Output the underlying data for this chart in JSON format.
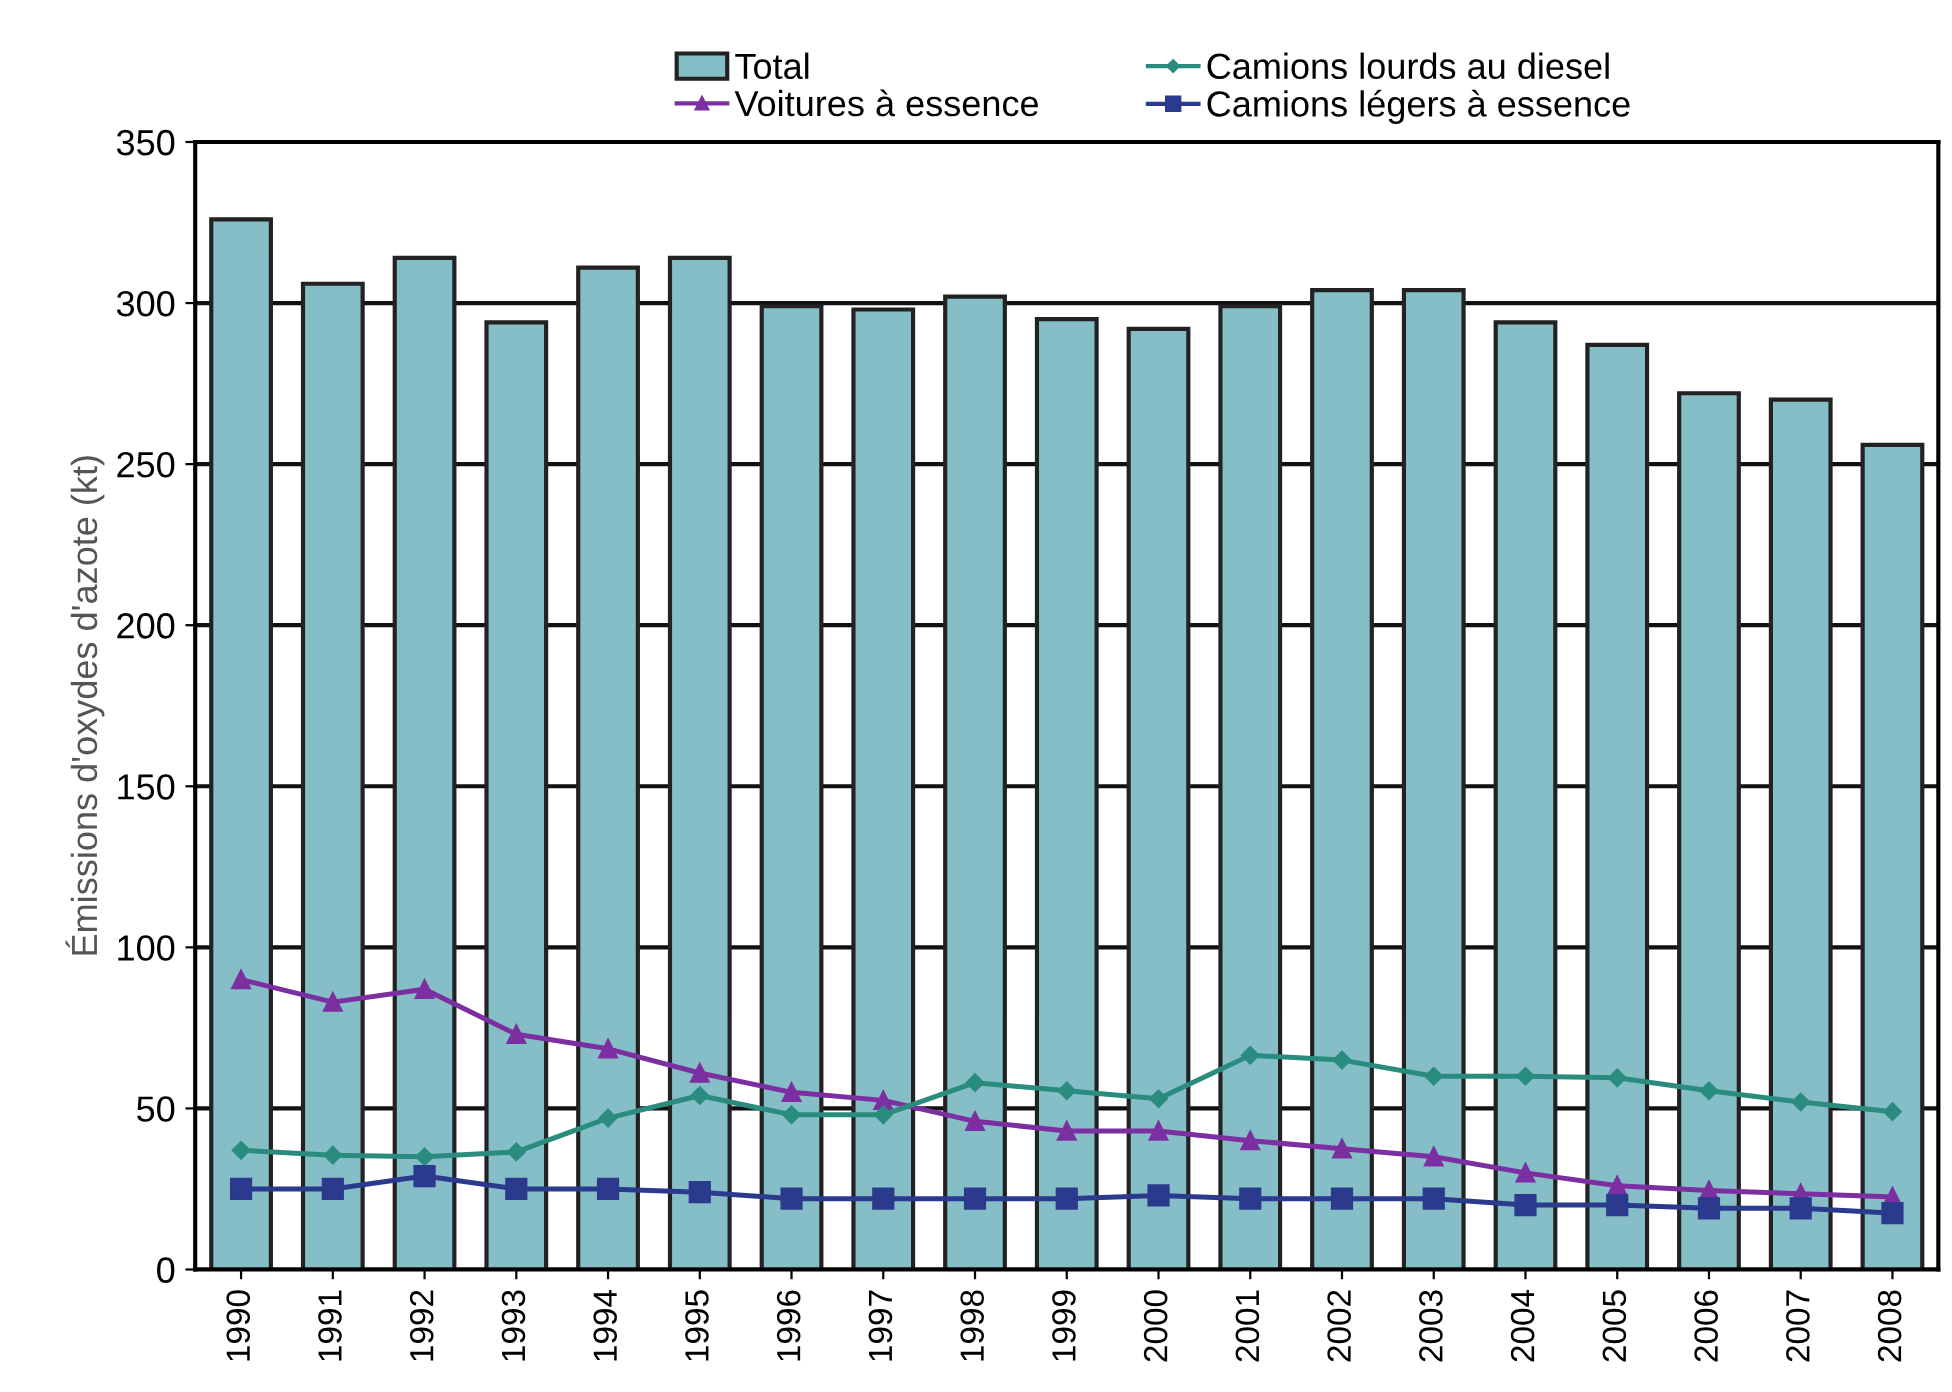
{
  "chart_data": {
    "type": "bar",
    "ylabel": "Émissions d'oxydes d'azote (kt)",
    "categories": [
      "1990",
      "1991",
      "1992",
      "1993",
      "1994",
      "1995",
      "1996",
      "1997",
      "1998",
      "1999",
      "2000",
      "2001",
      "2002",
      "2003",
      "2004",
      "2005",
      "2006",
      "2007",
      "2008"
    ],
    "series": [
      {
        "name": "Total",
        "color": "#86bec7",
        "values": [
          326,
          306,
          314,
          294,
          311,
          314,
          299,
          298,
          302,
          295,
          292,
          299,
          304,
          304,
          294,
          287,
          272,
          270,
          256
        ]
      },
      {
        "name": "Voitures à essence",
        "type": "line",
        "marker": "triangle",
        "color": "#7b2fa0",
        "values": [
          90,
          83,
          87,
          73,
          68.5,
          61,
          55,
          52.5,
          46,
          43,
          43,
          40,
          37.5,
          35,
          30,
          26,
          24.5,
          23.5,
          22.5
        ]
      },
      {
        "name": "Camions lourds au diesel",
        "type": "line",
        "marker": "diamond",
        "color": "#2a8c7e",
        "values": [
          37,
          35.5,
          35,
          36.5,
          47,
          54,
          48,
          48,
          58,
          55.5,
          53,
          66.5,
          65,
          60,
          60,
          59.5,
          55.5,
          52,
          49
        ]
      },
      {
        "name": "Camions légers à essence",
        "type": "line",
        "marker": "square",
        "color": "#2b3a8c",
        "values": [
          25,
          25,
          29,
          25,
          25,
          24,
          22,
          22,
          22,
          22,
          23,
          22,
          22,
          22,
          20,
          20,
          19,
          19,
          17.5
        ]
      }
    ],
    "ylim": [
      0,
      350
    ],
    "yticks": [
      0,
      50,
      100,
      150,
      200,
      250,
      300,
      350
    ],
    "grid": "y",
    "legend": "top"
  }
}
